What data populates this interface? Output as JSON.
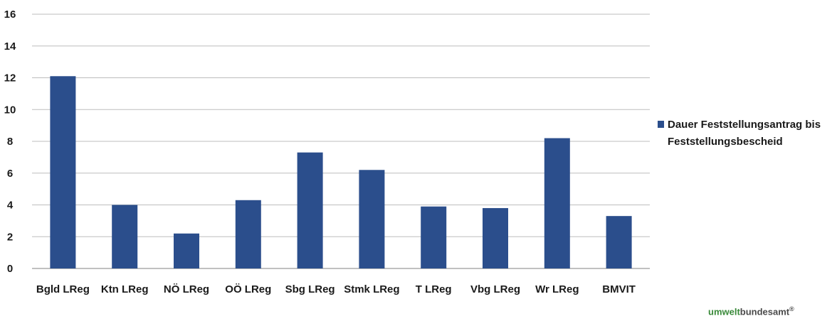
{
  "chart_data": {
    "type": "bar",
    "categories": [
      "Bgld LReg",
      "Ktn LReg",
      "NÖ LReg",
      "OÖ LReg",
      "Sbg LReg",
      "Stmk LReg",
      "T LReg",
      "Vbg LReg",
      "Wr LReg",
      "BMVIT"
    ],
    "series": [
      {
        "name": "Dauer Feststellungsantrag bis Feststellungsbescheid",
        "values": [
          12.1,
          4.0,
          2.2,
          4.3,
          7.3,
          6.2,
          3.9,
          3.8,
          8.2,
          3.3
        ],
        "color": "#2b4e8c"
      }
    ],
    "yticks": [
      "0",
      "2",
      "4",
      "6",
      "8",
      "10",
      "12",
      "14",
      "16"
    ],
    "ylim": [
      0,
      16
    ],
    "grid": true,
    "legend_position": "right"
  },
  "legend": {
    "label": "Dauer Feststellungsantrag bis Feststellungsbescheid"
  },
  "logo": {
    "part1": "umwelt",
    "part2": "bundesamt",
    "mark": "®"
  }
}
